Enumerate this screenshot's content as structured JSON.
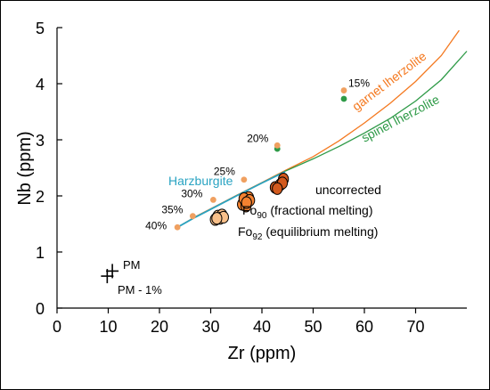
{
  "chart_data": {
    "type": "scatter",
    "xlabel": "Zr (ppm)",
    "ylabel": "Nb (ppm)",
    "xlim": [
      0,
      80
    ],
    "ylim": [
      0,
      5
    ],
    "xticks": [
      0,
      10,
      20,
      30,
      40,
      50,
      60,
      70
    ],
    "yticks": [
      0,
      1,
      2,
      3,
      4,
      5
    ],
    "grid": false,
    "curves": [
      {
        "name": "garnet lherzolite",
        "color": "#f47920",
        "x": [
          23.5,
          27,
          30,
          35,
          40,
          44.5,
          50,
          55,
          60,
          65,
          70,
          75,
          78.5
        ],
        "y": [
          1.44,
          1.63,
          1.77,
          2.01,
          2.24,
          2.45,
          2.7,
          2.98,
          3.3,
          3.65,
          4.04,
          4.5,
          4.95
        ]
      },
      {
        "name": "spinel lherzolite",
        "color": "#2e9a47",
        "x": [
          23.5,
          27,
          30,
          35,
          40,
          44.5,
          50,
          55,
          60,
          65,
          70,
          75,
          80
        ],
        "y": [
          1.44,
          1.62,
          1.76,
          2.0,
          2.23,
          2.44,
          2.66,
          2.88,
          3.12,
          3.38,
          3.69,
          4.07,
          4.58
        ]
      },
      {
        "name": "Harzburgite",
        "color": "#29a3c2",
        "x": [
          23.5,
          27,
          30,
          35,
          40,
          44.5
        ],
        "y": [
          1.44,
          1.62,
          1.76,
          2.0,
          2.23,
          2.43
        ]
      }
    ],
    "melt_markers": [
      {
        "label": "40%",
        "x": 23.5,
        "y": 1.44,
        "color": "#f0a060"
      },
      {
        "label": "35%",
        "x": 26.5,
        "y": 1.64,
        "color": "#f0a060"
      },
      {
        "label": "30%",
        "x": 30.5,
        "y": 1.93,
        "color": "#f0a060"
      },
      {
        "label": "25%",
        "x": 36.5,
        "y": 2.29,
        "color": "#f0a060"
      },
      {
        "label": "20%",
        "x": 43,
        "y": 2.9,
        "color": "#f0a060"
      },
      {
        "label": "15%",
        "x": 56,
        "y": 3.88,
        "color": "#f0a060"
      }
    ],
    "spinel_markers": [
      {
        "x": 43,
        "y": 2.84,
        "color": "#2e9a47"
      },
      {
        "x": 56,
        "y": 3.73,
        "color": "#2e9a47"
      }
    ],
    "sample_groups": [
      {
        "name": "uncorrected",
        "fill": "#d35a1e",
        "x": [
          42.6,
          43.6,
          44.2,
          44.0,
          43.0
        ],
        "y": [
          2.15,
          2.2,
          2.3,
          2.23,
          2.13
        ]
      },
      {
        "name": "Fo90 (fractional melting)",
        "fill": "#f58230",
        "x": [
          36.2,
          36.8,
          37.4,
          36.9,
          36.5,
          37.6,
          37.0
        ],
        "y": [
          1.85,
          1.9,
          1.97,
          1.82,
          1.95,
          1.92,
          1.88
        ]
      },
      {
        "name": "Fo92 (equilibrium melting)",
        "fill": "#f9c08a",
        "x": [
          30.9,
          31.4,
          32.2,
          31.8,
          32.5,
          31.2
        ],
        "y": [
          1.58,
          1.64,
          1.66,
          1.6,
          1.62,
          1.6
        ]
      }
    ],
    "primitive_mantle": [
      {
        "label": "PM",
        "x": 10.8,
        "y": 0.66
      },
      {
        "label": "PM - 1%",
        "x": 9.8,
        "y": 0.57
      }
    ],
    "annotations": {
      "garnet_label": "garnet lherzolite",
      "spinel_label": "spinel lherzolite",
      "harzburgite_label": "Harzburgite",
      "uncorrected_label": "uncorrected",
      "fo90_label_prefix": "Fo",
      "fo90_label_sub": "90",
      "fo90_label_suffix": " (fractional melting)",
      "fo92_label_prefix": "Fo",
      "fo92_label_sub": "92",
      "fo92_label_suffix": " (equilibrium melting)",
      "pm_label": "PM",
      "pm1_label": "PM - 1%"
    }
  }
}
